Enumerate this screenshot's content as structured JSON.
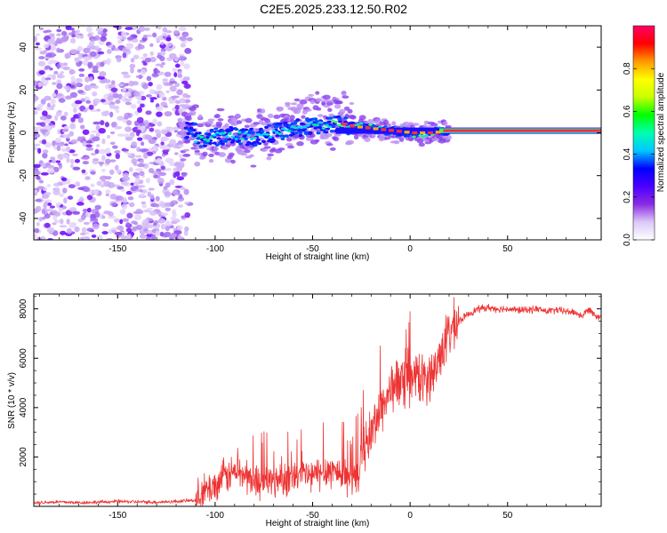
{
  "title": "C2E5.2025.233.12.50.R02",
  "chart_data": [
    {
      "type": "heatmap",
      "title": "C2E5.2025.233.12.50.R02",
      "xlabel": "Height of straight line (km)",
      "ylabel": "Frequency (Hz)",
      "xlim": [
        -193,
        98
      ],
      "ylim": [
        -50,
        50
      ],
      "xticks": [
        -150,
        -100,
        -50,
        0,
        50
      ],
      "yticks": [
        -40,
        -20,
        0,
        20,
        40
      ],
      "xtick_labels": [
        "-150",
        "-100",
        "-50",
        "0",
        "50"
      ],
      "ytick_labels": [
        "-40",
        "-20",
        "0",
        "20",
        "40"
      ],
      "colorbar": {
        "label": "Normalized spectral amplitude",
        "range": [
          0,
          1
        ],
        "ticks": [
          0.0,
          0.2,
          0.4,
          0.6,
          0.8
        ],
        "tick_labels": [
          "0.0",
          "0.2",
          "0.4",
          "0.6",
          "0.8"
        ],
        "colormap": [
          "#ffffff",
          "#dcc8f8",
          "#8a2be2",
          "#4b00ff",
          "#0000ff",
          "#00c8ff",
          "#00ffb0",
          "#00ff00",
          "#c8ff00",
          "#ffff00",
          "#ff9900",
          "#ff0000",
          "#ff0066"
        ]
      },
      "ridge": {
        "description": "frequency centre of dominant signal vs height",
        "x": [
          -110,
          -100,
          -90,
          -80,
          -70,
          -60,
          -50,
          -40,
          -35,
          -30,
          -20,
          -10,
          0,
          10,
          20,
          50,
          95
        ],
        "y": [
          -3,
          -2,
          -1,
          -2,
          0,
          2,
          3,
          4,
          4,
          3,
          2,
          1,
          0,
          0,
          1,
          1,
          1
        ]
      },
      "noise_region": {
        "x_range": [
          -193,
          -113
        ],
        "y_range": [
          -50,
          50
        ]
      }
    },
    {
      "type": "line",
      "xlabel": "Height of straight line (km)",
      "ylabel": "SNR (10 * v/v)",
      "xlim": [
        -193,
        98
      ],
      "ylim": [
        0,
        8600
      ],
      "xticks": [
        -150,
        -100,
        -50,
        0,
        50
      ],
      "yticks": [
        2000,
        4000,
        6000,
        8000
      ],
      "xtick_labels": [
        "-150",
        "-100",
        "-50",
        "0",
        "50"
      ],
      "ytick_labels": [
        "2000",
        "4000",
        "6000",
        "8000"
      ],
      "series": [
        {
          "name": "SNR",
          "color": "#ee3333",
          "x": [
            -193,
            -180,
            -170,
            -160,
            -150,
            -140,
            -130,
            -120,
            -110,
            -105,
            -100,
            -95,
            -90,
            -85,
            -80,
            -75,
            -70,
            -65,
            -60,
            -55,
            -50,
            -45,
            -40,
            -35,
            -30,
            -27,
            -25,
            -22,
            -20,
            -18,
            -15,
            -12,
            -10,
            -8,
            -5,
            -3,
            0,
            3,
            5,
            8,
            10,
            13,
            15,
            18,
            20,
            25,
            30,
            35,
            40,
            45,
            50,
            55,
            60,
            65,
            70,
            75,
            80,
            85,
            88,
            90,
            92,
            95,
            98
          ],
          "y": [
            150,
            180,
            150,
            170,
            200,
            180,
            170,
            200,
            250,
            600,
            900,
            1200,
            1400,
            1300,
            1000,
            1100,
            1000,
            1200,
            1100,
            1300,
            1200,
            1400,
            1500,
            1300,
            1200,
            1000,
            2000,
            2600,
            3000,
            3400,
            4000,
            4400,
            4700,
            5000,
            5000,
            4800,
            5100,
            5300,
            5100,
            5200,
            5300,
            5500,
            6100,
            6700,
            7000,
            7500,
            7800,
            8000,
            8050,
            8000,
            8000,
            7950,
            7950,
            8000,
            7900,
            7950,
            7900,
            7850,
            7700,
            7850,
            8000,
            7750,
            7650
          ]
        }
      ]
    }
  ]
}
